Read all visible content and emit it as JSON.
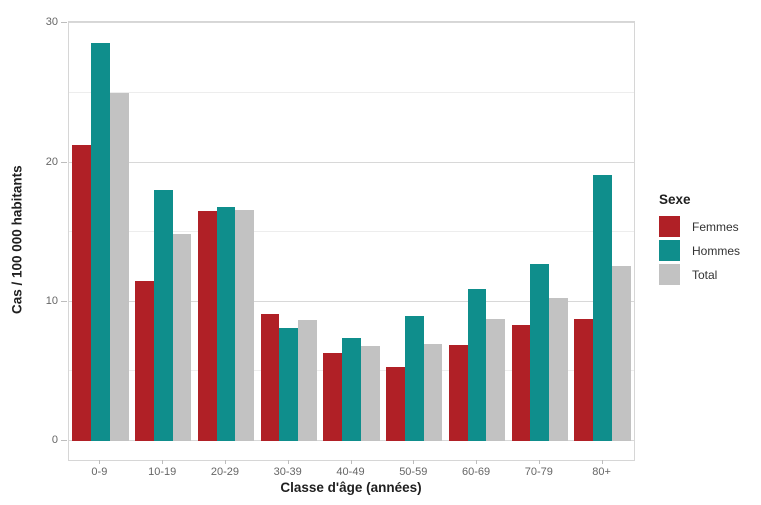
{
  "chart_data": {
    "type": "bar",
    "xlabel": "Classe d'âge (années)",
    "ylabel": "Cas / 100 000 habitants",
    "legend_title": "Sexe",
    "legend_position": "right",
    "categories": [
      "0-9",
      "10-19",
      "20-29",
      "30-39",
      "40-49",
      "50-59",
      "60-69",
      "70-79",
      "80+"
    ],
    "series": [
      {
        "name": "Femmes",
        "color": "#b02026",
        "values": [
          21.3,
          11.5,
          16.5,
          9.1,
          6.3,
          5.3,
          6.9,
          8.3,
          8.8
        ]
      },
      {
        "name": "Hommes",
        "color": "#0f8e8c",
        "values": [
          28.6,
          18.0,
          16.8,
          8.1,
          7.4,
          9.0,
          10.9,
          12.7,
          19.1
        ]
      },
      {
        "name": "Total",
        "color": "#c2c2c2",
        "values": [
          25.0,
          14.9,
          16.6,
          8.7,
          6.8,
          7.0,
          8.8,
          10.3,
          12.6
        ]
      }
    ],
    "ylim": [
      0,
      30
    ],
    "yticks": [
      0,
      10,
      20,
      30
    ],
    "minor_gridlines": [
      5,
      15,
      25
    ],
    "grid": "on",
    "background": "#ffffff",
    "panel_border_color": "#d6d6d6"
  }
}
